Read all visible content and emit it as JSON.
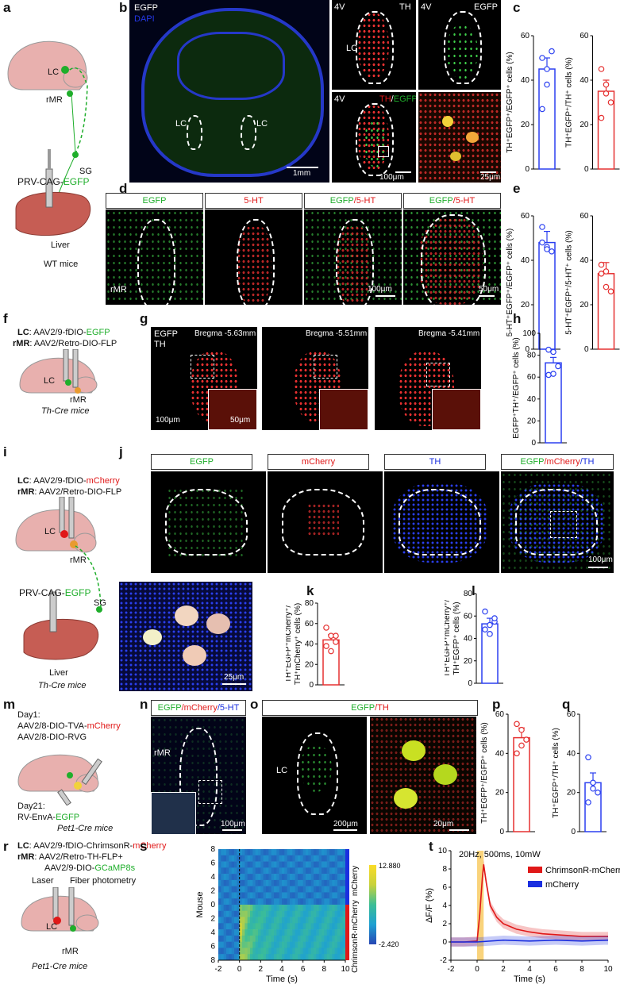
{
  "panels": {
    "a": "a",
    "b": "b",
    "c": "c",
    "d": "d",
    "e": "e",
    "f": "f",
    "g": "g",
    "h": "h",
    "i": "i",
    "j": "j",
    "k": "k",
    "l": "l",
    "m": "m",
    "n": "n",
    "o": "o",
    "p": "p",
    "q": "q",
    "r": "r",
    "s": "s",
    "t": "t"
  },
  "a": {
    "lc": "LC",
    "rmr": "rMR",
    "sg": "SG",
    "virus_prefix": "PRV-CAG-",
    "virus_fp": "EGFP",
    "liver": "Liver",
    "mice": "WT mice"
  },
  "b": {
    "egfp": "EGFP",
    "dapi": "DAPI",
    "lc1": "LC",
    "lc2": "LC",
    "scale1": "1mm",
    "v4a": "4V",
    "th": "TH",
    "lc_arrow": "LC",
    "v4b": "4V",
    "egfp2": "EGFP",
    "v4c": "4V",
    "th2": "TH",
    "slash": "/",
    "egfp3": "EGFP",
    "scale2": "100μm",
    "scale3": "25μm"
  },
  "c": {
    "ylab1": "TH⁺EGFP⁺/EGFP⁺ cells (%)",
    "ylab2": "TH⁺EGFP⁺/TH⁺ cells (%)",
    "ticks1": [
      "0",
      "20",
      "40",
      "60"
    ],
    "ticks2": [
      "0",
      "20",
      "40",
      "60"
    ]
  },
  "d": {
    "h1": "EGFP",
    "h2": "5-HT",
    "h3a": "EGFP",
    "h3b": "/5-HT",
    "h4a": "EGFP",
    "h4b": "/5-HT",
    "rmr": "rMR",
    "scale1": "100μm",
    "scale2": "50μm"
  },
  "e": {
    "ylab1": "5-HT⁺EGFP⁺/EGFP⁺ cells (%)",
    "ylab2": "5-HT⁺EGFP⁺/5-HT⁺ cells (%)",
    "ticks1": [
      "0",
      "20",
      "40",
      "60"
    ],
    "ticks2": [
      "0",
      "20",
      "40",
      "60"
    ]
  },
  "f": {
    "lc_label": "LC",
    "lc_virus_prefix": ": AAV2/9-fDIO-",
    "lc_virus_fp": "EGFP",
    "rmr_label": "rMR",
    "rmr_virus": ": AAV2/Retro-DIO-FLP",
    "lc": "LC",
    "rmr": "rMR",
    "mice": "Th-Cre mice"
  },
  "g": {
    "egfp": "EGFP",
    "th": "TH",
    "bregma1": "Bregma -5.63mm",
    "bregma2": "Bregma -5.51mm",
    "bregma3": "Bregma -5.41mm",
    "scale1": "100μm",
    "scale2": "50μm"
  },
  "h": {
    "ylab": "EGFP⁺TH⁺/EGFP⁺ cells (%)",
    "ticks": [
      "0",
      "20",
      "40",
      "60",
      "80",
      "100"
    ]
  },
  "i": {
    "lc_label": "LC",
    "lc_virus_prefix": ": AAV2/9-fDIO-",
    "lc_virus_fp": "mCherry",
    "rmr_label": "rMR",
    "rmr_virus": ": AAV2/Retro-DIO-FLP",
    "lc": "LC",
    "rmr": "rMR",
    "sg": "SG",
    "virus_prefix": "PRV-CAG-",
    "virus_fp": "EGFP",
    "liver": "Liver",
    "mice": "Th-Cre mice"
  },
  "j": {
    "h1": "EGFP",
    "h2": "mCherry",
    "h3": "TH",
    "h4a": "EGFP",
    "h4b": "/mCherry",
    "h4c": "/TH",
    "scale1": "100μm",
    "scale2": "25μm"
  },
  "k": {
    "ylab1": "TH⁺EGFP⁺mCherry⁺/",
    "ylab2": "TH⁺mCherry⁺ cells (%)",
    "ticks": [
      "0",
      "20",
      "40",
      "60",
      "80"
    ]
  },
  "l": {
    "ylab1": "TH⁺EGFP⁺mCherry⁺/",
    "ylab2": "TH⁺EGFP⁺ cells (%)",
    "ticks": [
      "0",
      "20",
      "40",
      "60",
      "80"
    ]
  },
  "m": {
    "day1": "Day1:",
    "v1_prefix": "AAV2/8-DIO-TVA-",
    "v1_fp": "mCherry",
    "v2": "AAV2/8-DIO-RVG",
    "day21": "Day21:",
    "v3_prefix": "RV-EnvA-",
    "v3_fp": "EGFP",
    "mice": "Pet1-Cre mice"
  },
  "n": {
    "h_a": "EGFP",
    "h_b": "/mCherry",
    "h_c": "/5-HT",
    "rmr": "rMR",
    "scale": "100μm"
  },
  "o": {
    "h_a": "EGFP",
    "h_b": "/TH",
    "lc": "LC",
    "scale1": "200μm",
    "scale2": "20μm"
  },
  "p": {
    "ylab": "TH⁺EGFP⁺/EGFP⁺ cells (%)",
    "ticks": [
      "0",
      "20",
      "40",
      "60"
    ]
  },
  "q": {
    "ylab": "TH⁺EGFP⁺/TH⁺ cells (%)",
    "ticks": [
      "0",
      "20",
      "40",
      "60"
    ]
  },
  "r": {
    "lc_label": "LC",
    "lc_virus_prefix": ": AAV2/9-fDIO-ChrimsonR-",
    "lc_virus_fp": "mCherry",
    "rmr_label": "rMR",
    "rmr_virus1": ": AAV2/Retro-TH-FLP+",
    "rmr_virus2_prefix": "AAV2/9-DIO-",
    "rmr_virus2_fp": "GCaMP8s",
    "laser": "Laser",
    "fiber": "Fiber photometry",
    "lc": "LC",
    "rmr": "rMR",
    "mice": "Pet1-Cre mice"
  },
  "s": {
    "ylab": "Mouse",
    "xlab": "Time (s)",
    "yticks": [
      "8",
      "6",
      "4",
      "2",
      "0",
      "2",
      "4",
      "6",
      "8"
    ],
    "xticks": [
      "-2",
      "0",
      "2",
      "4",
      "6",
      "8",
      "10"
    ],
    "group1": "mCherry",
    "group2": "ChrimsonR-mCherry",
    "cmax": "12.880",
    "cmin": "-2.420"
  },
  "t": {
    "stim": "20Hz, 500ms, 10mW",
    "ylab": "ΔF/F (%)",
    "xlab": "Time (s)",
    "legend1": "ChrimsonR-mCherry",
    "legend2": "mCherry",
    "yticks": [
      "-2",
      "0",
      "2",
      "4",
      "6",
      "8",
      "10"
    ],
    "xticks": [
      "-2",
      "0",
      "2",
      "4",
      "6",
      "8",
      "10"
    ]
  },
  "chart_data": [
    {
      "type": "bar",
      "panel": "c-left",
      "ylabel": "TH⁺EGFP⁺/EGFP⁺ cells (%)",
      "ylim": [
        0,
        60
      ],
      "values": [
        45
      ],
      "points": [
        50,
        38,
        53,
        27,
        45
      ],
      "color": "#2a3ff0"
    },
    {
      "type": "bar",
      "panel": "c-right",
      "ylabel": "TH⁺EGFP⁺/TH⁺ cells (%)",
      "ylim": [
        0,
        60
      ],
      "values": [
        35
      ],
      "points": [
        45,
        34,
        30,
        23,
        38
      ],
      "color": "#e53030"
    },
    {
      "type": "bar",
      "panel": "e-left",
      "ylabel": "5-HT⁺EGFP⁺/EGFP⁺ cells (%)",
      "ylim": [
        0,
        60
      ],
      "values": [
        48
      ],
      "points": [
        55,
        46,
        44,
        48,
        45
      ],
      "color": "#2a3ff0"
    },
    {
      "type": "bar",
      "panel": "e-right",
      "ylabel": "5-HT⁺EGFP⁺/5-HT⁺ cells (%)",
      "ylim": [
        0,
        60
      ],
      "values": [
        34
      ],
      "points": [
        38,
        35,
        26,
        34,
        28
      ],
      "color": "#e53030"
    },
    {
      "type": "bar",
      "panel": "h",
      "ylabel": "EGFP⁺TH⁺/EGFP⁺ cells (%)",
      "ylim": [
        0,
        100
      ],
      "values": [
        73
      ],
      "points": [
        85,
        83,
        70,
        62,
        63
      ],
      "color": "#2a3ff0"
    },
    {
      "type": "bar",
      "panel": "k",
      "ylabel": "TH⁺EGFP⁺mCherry⁺/TH⁺mCherry⁺ cells (%)",
      "ylim": [
        0,
        80
      ],
      "values": [
        44
      ],
      "points": [
        56,
        48,
        42,
        38,
        33,
        48
      ],
      "color": "#e53030"
    },
    {
      "type": "bar",
      "panel": "l",
      "ylabel": "TH⁺EGFP⁺mCherry⁺/TH⁺EGFP⁺ cells (%)",
      "ylim": [
        0,
        80
      ],
      "values": [
        53
      ],
      "points": [
        64,
        52,
        55,
        48,
        44,
        58
      ],
      "color": "#2a3ff0"
    },
    {
      "type": "bar",
      "panel": "p",
      "ylabel": "TH⁺EGFP⁺/EGFP⁺ cells (%)",
      "ylim": [
        0,
        60
      ],
      "values": [
        48
      ],
      "points": [
        55,
        52,
        47,
        40,
        44
      ],
      "color": "#e53030"
    },
    {
      "type": "bar",
      "panel": "q",
      "ylabel": "TH⁺EGFP⁺/TH⁺ cells (%)",
      "ylim": [
        0,
        60
      ],
      "values": [
        25
      ],
      "points": [
        38,
        22,
        20,
        15,
        25
      ],
      "color": "#2a3ff0"
    },
    {
      "type": "heatmap",
      "panel": "s",
      "xlabel": "Time (s)",
      "ylabel": "Mouse",
      "xlim": [
        -2,
        10
      ],
      "rows": 18,
      "cmin": -2.42,
      "cmax": 12.88
    },
    {
      "type": "line",
      "panel": "t",
      "xlabel": "Time (s)",
      "ylabel": "ΔF/F (%)",
      "xlim": [
        -2,
        10
      ],
      "ylim": [
        -2,
        10
      ],
      "series": [
        {
          "name": "ChrimsonR-mCherry",
          "color": "#e01818",
          "x": [
            -2,
            -1,
            0,
            0.2,
            0.4,
            0.5,
            0.7,
            1,
            1.5,
            2,
            3,
            4,
            5,
            6,
            8,
            10
          ],
          "y": [
            0,
            0,
            0.1,
            3,
            7,
            8.5,
            6.5,
            4,
            2.7,
            2,
            1.4,
            1.1,
            0.9,
            0.8,
            0.6,
            0.6
          ]
        },
        {
          "name": "mCherry",
          "color": "#1a2fe0",
          "x": [
            -2,
            0,
            2,
            4,
            6,
            8,
            10
          ],
          "y": [
            0,
            0,
            0.2,
            0.1,
            0.2,
            0.1,
            0.2
          ]
        }
      ]
    }
  ]
}
